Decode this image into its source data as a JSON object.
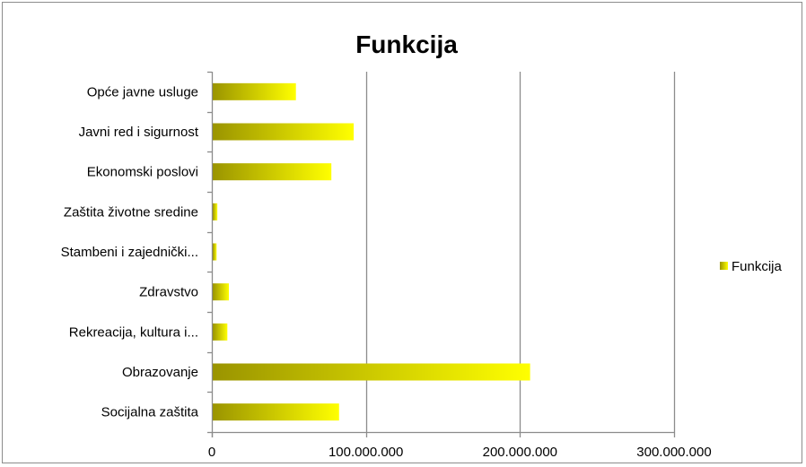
{
  "chart_data": {
    "type": "bar",
    "orientation": "horizontal",
    "title": "Funkcija",
    "xlabel": "",
    "ylabel": "",
    "categories": [
      "Opće javne usluge",
      "Javni red i sigurnost",
      "Ekonomski poslovi",
      "Zaštita životne sredine",
      "Stambeni i zajednički...",
      "Zdravstvo",
      "Rekreacija, kultura i...",
      "Obrazovanje",
      "Socijalna zaštita"
    ],
    "series": [
      {
        "name": "Funkcija",
        "values": [
          54000000,
          91500000,
          77000000,
          3000000,
          2500000,
          10500000,
          9500000,
          206000000,
          82000000
        ]
      }
    ],
    "xlim": [
      0,
      300000000
    ],
    "x_ticks": [
      0,
      100000000,
      200000000,
      300000000
    ],
    "x_tick_labels": [
      "0",
      "100.000.000",
      "200.000.000",
      "300.000.000"
    ],
    "grid": "vertical-major",
    "legend": "right",
    "colors": {
      "bar_dark": "#9a9400",
      "bar_light": "#ffff00",
      "gridline": "#8c8c8c",
      "text": "#000000"
    }
  }
}
